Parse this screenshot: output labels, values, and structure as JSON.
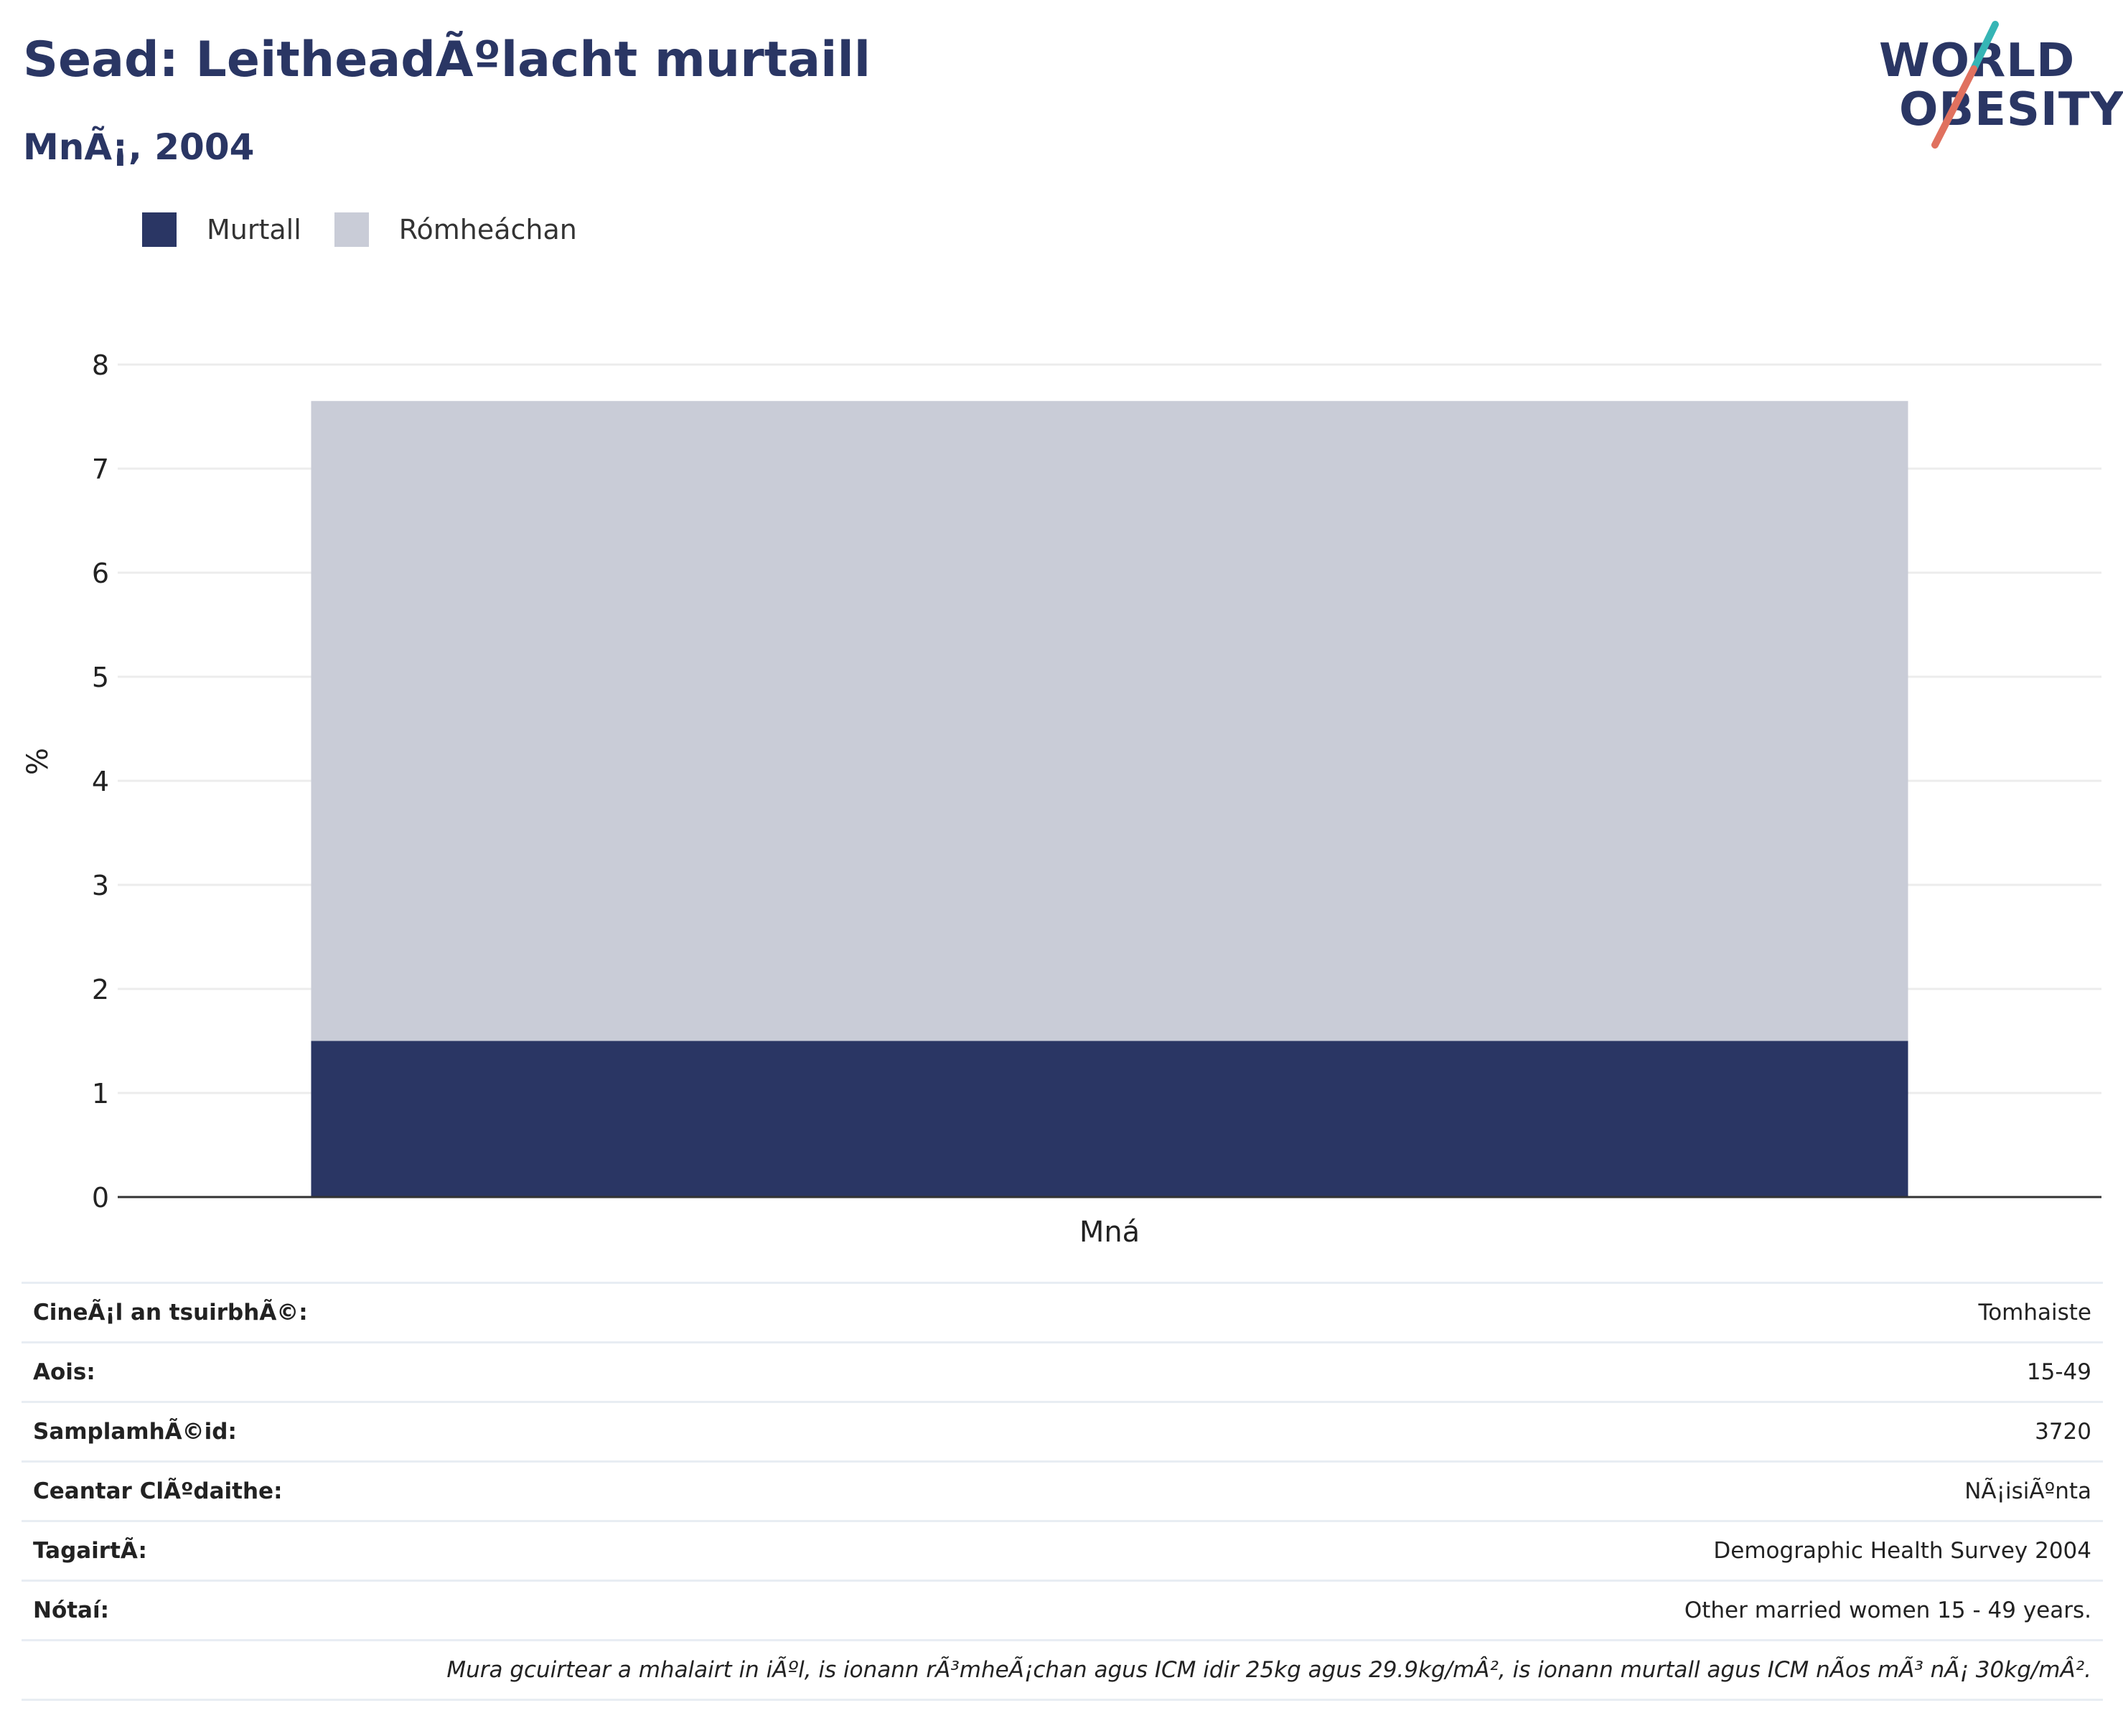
{
  "header": {
    "title": "Sead: LeitheadÃºlacht murtaill",
    "subtitle": "MnÃ¡, 2004"
  },
  "logo": {
    "line1": "WORLD",
    "line2": "OBESITY",
    "accent_teal": "#36b5b5",
    "accent_red": "#e0715f"
  },
  "legend": [
    {
      "label": "Murtall",
      "color": "#2a3664"
    },
    {
      "label": "Rómheáchan",
      "color": "#c9ccd7"
    }
  ],
  "chart_data": {
    "type": "bar",
    "stacked": true,
    "categories": [
      "Mná"
    ],
    "series": [
      {
        "name": "Murtall",
        "values": [
          1.5
        ],
        "color": "#2a3664"
      },
      {
        "name": "Rómheáchan",
        "values": [
          6.15
        ],
        "color": "#c9ccd7"
      }
    ],
    "xlabel": "",
    "ylabel": "%",
    "ylim": [
      0,
      8
    ],
    "yticks": [
      0,
      1,
      2,
      3,
      4,
      5,
      6,
      7,
      8
    ],
    "grid": true,
    "legend_position": "top-left"
  },
  "info_table": [
    {
      "key": "CineÃ¡l an tsuirbhÃ©:",
      "value": "Tomhaiste"
    },
    {
      "key": "Aois:",
      "value": "15-49"
    },
    {
      "key": "SamplamhÃ©id:",
      "value": "3720"
    },
    {
      "key": "Ceantar ClÃºdaithe:",
      "value": "NÃ¡isiÃºnta"
    },
    {
      "key": "TagairtÃ:",
      "value": "Demographic Health Survey 2004"
    },
    {
      "key": "Nótaí:",
      "value": "Other married women 15 - 49 years."
    }
  ],
  "footnote": "Mura gcuirtear a mhalairt in iÃºl, is ionann rÃ³mheÃ¡chan agus ICM idir 25kg agus 29.9kg/mÂ², is ionann murtall agus ICM nÃos mÃ³ nÃ¡ 30kg/mÂ²."
}
